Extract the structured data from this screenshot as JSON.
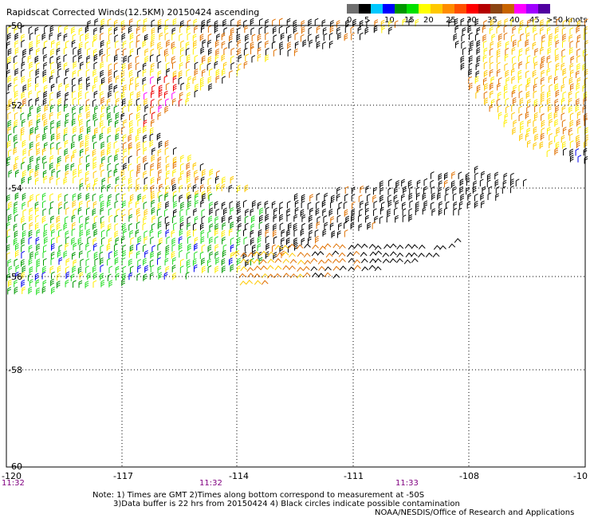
{
  "title": "Rapidscat Corrected Winds(12.5KM) 20150424 ascending",
  "legend": {
    "colors": [
      "#6e6e6e",
      "#000000",
      "#00c8ff",
      "#0000ff",
      "#009600",
      "#00e000",
      "#ffff00",
      "#ffc800",
      "#ff8c00",
      "#ff5000",
      "#ff0000",
      "#b40000",
      "#8b4513",
      "#c86400",
      "#ff00ff",
      "#a000ff",
      "#5000a0"
    ],
    "labels": [
      "0",
      "5",
      "10",
      "15",
      "20",
      "25",
      "30",
      "35",
      "40",
      "45",
      ">50 knots"
    ]
  },
  "map": {
    "lat_labels": [
      "-50",
      "-52",
      "-54",
      "-56",
      "-58",
      "-60"
    ],
    "lon_labels": [
      "-120",
      "-117",
      "-114",
      "-111",
      "-108",
      "-10"
    ],
    "time_labels": [
      "11:32",
      "11:32",
      "11:33"
    ]
  },
  "notes": [
    "Note: 1) Times are GMT 2)Times along bottom correspond to measurement at -50S",
    "3)Data buffer is 22 hrs from 20150424 4) Black circles indicate possible contamination"
  ],
  "credit": "NOAA/NESDIS/Office of Research and Applications",
  "colors": {
    "black": "#000000",
    "green": "#009900",
    "lightgreen": "#22dd22",
    "blue": "#0000ee",
    "yellow": "#ffee00",
    "gold": "#ffc800",
    "orange": "#e07000",
    "red": "#ee0000",
    "magenta": "#ff00ff"
  }
}
